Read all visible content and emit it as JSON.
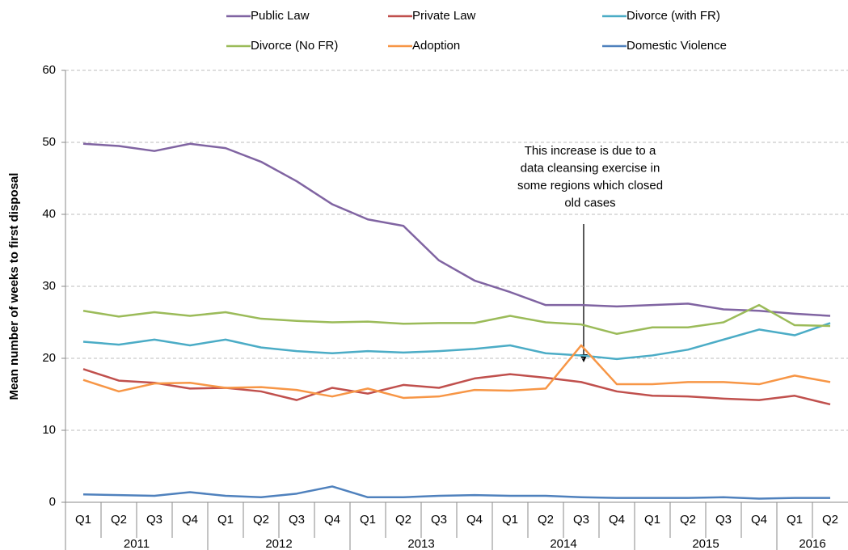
{
  "chart_data": {
    "type": "line",
    "y_label": "Mean  number of weeks to first disposal",
    "categories": [
      "Q1",
      "Q2",
      "Q3",
      "Q4",
      "Q1",
      "Q2",
      "Q3",
      "Q4",
      "Q1",
      "Q2",
      "Q3",
      "Q4",
      "Q1",
      "Q2",
      "Q3",
      "Q4",
      "Q1",
      "Q2",
      "Q3",
      "Q4",
      "Q1",
      "Q2"
    ],
    "year_groups": [
      {
        "label": "2011",
        "span": 4
      },
      {
        "label": "2012",
        "span": 4
      },
      {
        "label": "2013",
        "span": 4
      },
      {
        "label": "2014",
        "span": 4
      },
      {
        "label": "2015",
        "span": 4
      },
      {
        "label": "2016",
        "span": 2
      }
    ],
    "ylim": [
      0,
      60
    ],
    "yticks": [
      0,
      10,
      20,
      30,
      40,
      50,
      60
    ],
    "grid": true,
    "series": [
      {
        "name": "Public Law",
        "color": "#8064a2",
        "values": [
          49.8,
          49.5,
          48.8,
          49.8,
          49.2,
          47.3,
          44.6,
          41.4,
          39.3,
          38.4,
          33.6,
          30.8,
          29.2,
          27.4,
          27.4,
          27.2,
          27.4,
          27.6,
          26.8,
          26.6,
          26.2,
          25.9
        ]
      },
      {
        "name": "Private Law",
        "color": "#c0504d",
        "values": [
          18.5,
          16.9,
          16.6,
          15.8,
          15.9,
          15.4,
          14.2,
          15.9,
          15.1,
          16.3,
          15.9,
          17.2,
          17.8,
          17.3,
          16.7,
          15.4,
          14.8,
          14.7,
          14.4,
          14.2,
          14.8,
          13.6
        ]
      },
      {
        "name": "Divorce (with FR)",
        "color": "#4bacc6",
        "values": [
          22.3,
          21.9,
          22.6,
          21.8,
          22.6,
          21.5,
          21.0,
          20.7,
          21.0,
          20.8,
          21.0,
          21.3,
          21.8,
          20.7,
          20.4,
          19.9,
          20.4,
          21.2,
          22.6,
          24.0,
          23.2,
          24.9
        ]
      },
      {
        "name": "Divorce (No FR)",
        "color": "#9bbb59",
        "values": [
          26.6,
          25.8,
          26.4,
          25.9,
          26.4,
          25.5,
          25.2,
          25.0,
          25.1,
          24.8,
          24.9,
          24.9,
          25.9,
          25.0,
          24.7,
          23.4,
          24.3,
          24.3,
          25.0,
          27.4,
          24.6,
          24.5
        ]
      },
      {
        "name": "Adoption",
        "color": "#f79646",
        "values": [
          17.0,
          15.4,
          16.5,
          16.6,
          15.9,
          16.0,
          15.6,
          14.7,
          15.8,
          14.5,
          14.7,
          15.6,
          15.5,
          15.8,
          21.8,
          16.4,
          16.4,
          16.7,
          16.7,
          16.4,
          17.6,
          16.7
        ]
      },
      {
        "name": "Domestic Violence",
        "color": "#4f81bd",
        "values": [
          1.1,
          1.0,
          0.9,
          1.4,
          0.9,
          0.7,
          1.2,
          2.2,
          0.7,
          0.7,
          0.9,
          1.0,
          0.9,
          0.9,
          0.7,
          0.6,
          0.6,
          0.6,
          0.7,
          0.5,
          0.6,
          0.6
        ]
      }
    ],
    "annotation": [
      "This increase is due to a",
      "data cleansing exercise in",
      "some regions which closed",
      "old cases"
    ]
  }
}
